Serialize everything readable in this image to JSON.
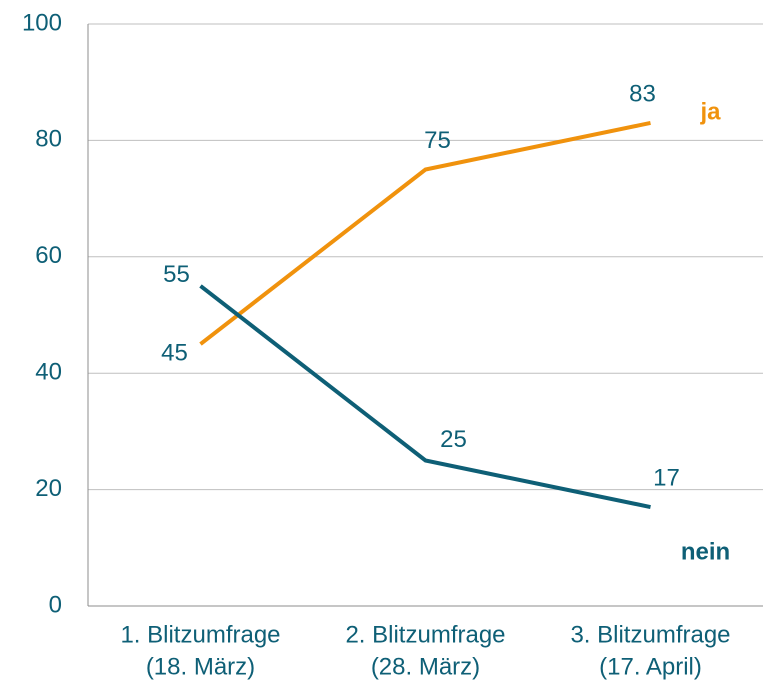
{
  "chart_data": {
    "type": "line",
    "categories": [
      [
        "1. Blitzumfrage",
        "(18. März)"
      ],
      [
        "2. Blitzumfrage",
        "(28. März)"
      ],
      [
        "3. Blitzumfrage",
        "(17. April)"
      ]
    ],
    "series": [
      {
        "name": "ja",
        "color": "#f0920d",
        "values": [
          45,
          75,
          83
        ]
      },
      {
        "name": "nein",
        "color": "#0e5f76",
        "values": [
          55,
          25,
          17
        ]
      }
    ],
    "ylim": [
      0,
      100
    ],
    "yticks": [
      0,
      20,
      40,
      60,
      80,
      100
    ],
    "grid": true
  }
}
